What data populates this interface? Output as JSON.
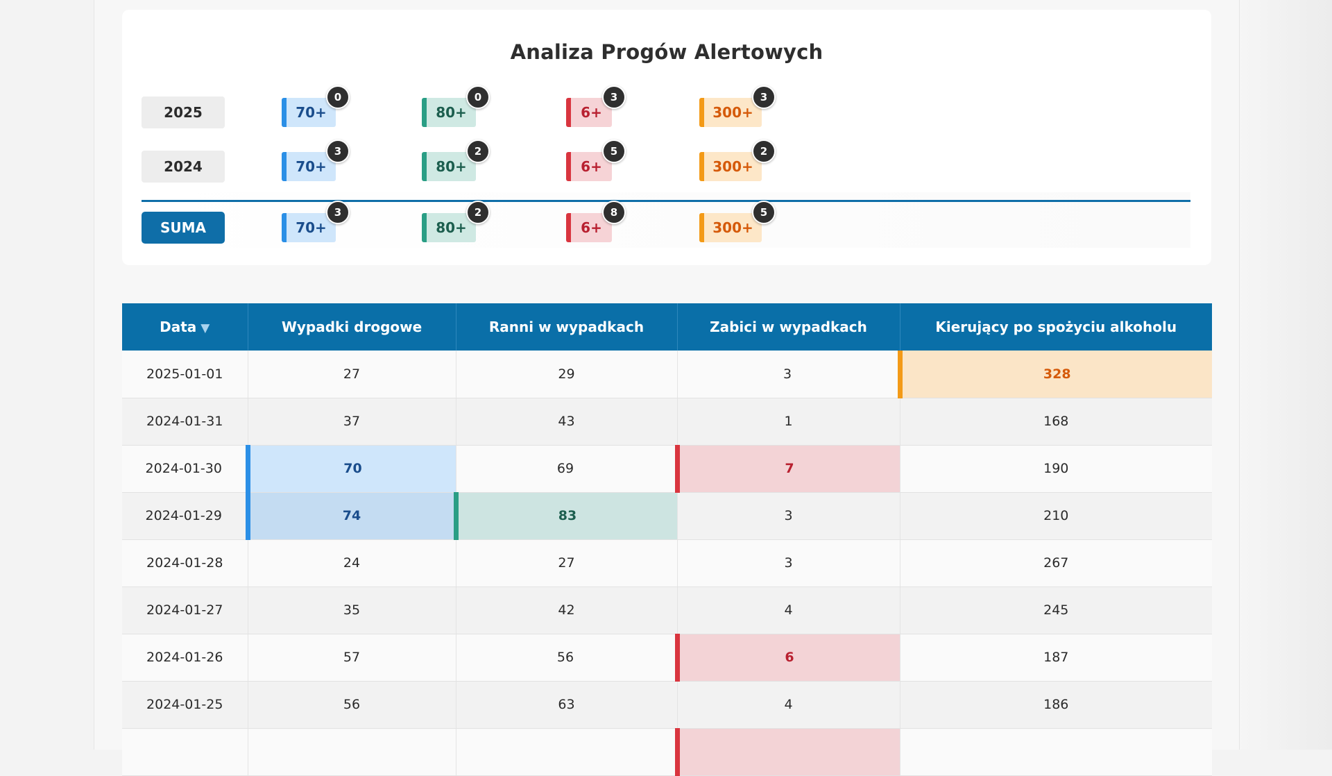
{
  "title": "Analiza Progów Alertowych",
  "threshold_rows": [
    {
      "label": "2025",
      "chips": [
        {
          "label": "70+",
          "count": "0"
        },
        {
          "label": "80+",
          "count": "0"
        },
        {
          "label": "6+",
          "count": "3"
        },
        {
          "label": "300+",
          "count": "3"
        }
      ]
    },
    {
      "label": "2024",
      "chips": [
        {
          "label": "70+",
          "count": "3"
        },
        {
          "label": "80+",
          "count": "2"
        },
        {
          "label": "6+",
          "count": "5"
        },
        {
          "label": "300+",
          "count": "2"
        }
      ]
    }
  ],
  "total_row": {
    "label": "SUMA",
    "chips": [
      {
        "label": "70+",
        "count": "3"
      },
      {
        "label": "80+",
        "count": "2"
      },
      {
        "label": "6+",
        "count": "8"
      },
      {
        "label": "300+",
        "count": "5"
      }
    ]
  },
  "table": {
    "headers": [
      "Data",
      "Wypadki drogowe",
      "Ranni w wypadkach",
      "Zabici w wypadkach",
      "Kierujący po spożyciu alkoholu"
    ],
    "sort_icon": "triangle-down-icon",
    "rows": [
      [
        "2025-01-01",
        "27",
        "29",
        "3",
        "328"
      ],
      [
        "2024-01-31",
        "37",
        "43",
        "1",
        "168"
      ],
      [
        "2024-01-30",
        "70",
        "69",
        "7",
        "190"
      ],
      [
        "2024-01-29",
        "74",
        "83",
        "3",
        "210"
      ],
      [
        "2024-01-28",
        "24",
        "27",
        "3",
        "267"
      ],
      [
        "2024-01-27",
        "35",
        "42",
        "4",
        "245"
      ],
      [
        "2024-01-26",
        "57",
        "56",
        "6",
        "187"
      ],
      [
        "2024-01-25",
        "56",
        "63",
        "4",
        "186"
      ],
      [
        "",
        "",
        "",
        "",
        ""
      ]
    ]
  },
  "colors": {
    "header_blue": "#0a6fa8",
    "threshold_70": "#2b8fe6",
    "threshold_80": "#2a9e85",
    "threshold_6": "#d9353f",
    "threshold_300": "#f39a17"
  }
}
